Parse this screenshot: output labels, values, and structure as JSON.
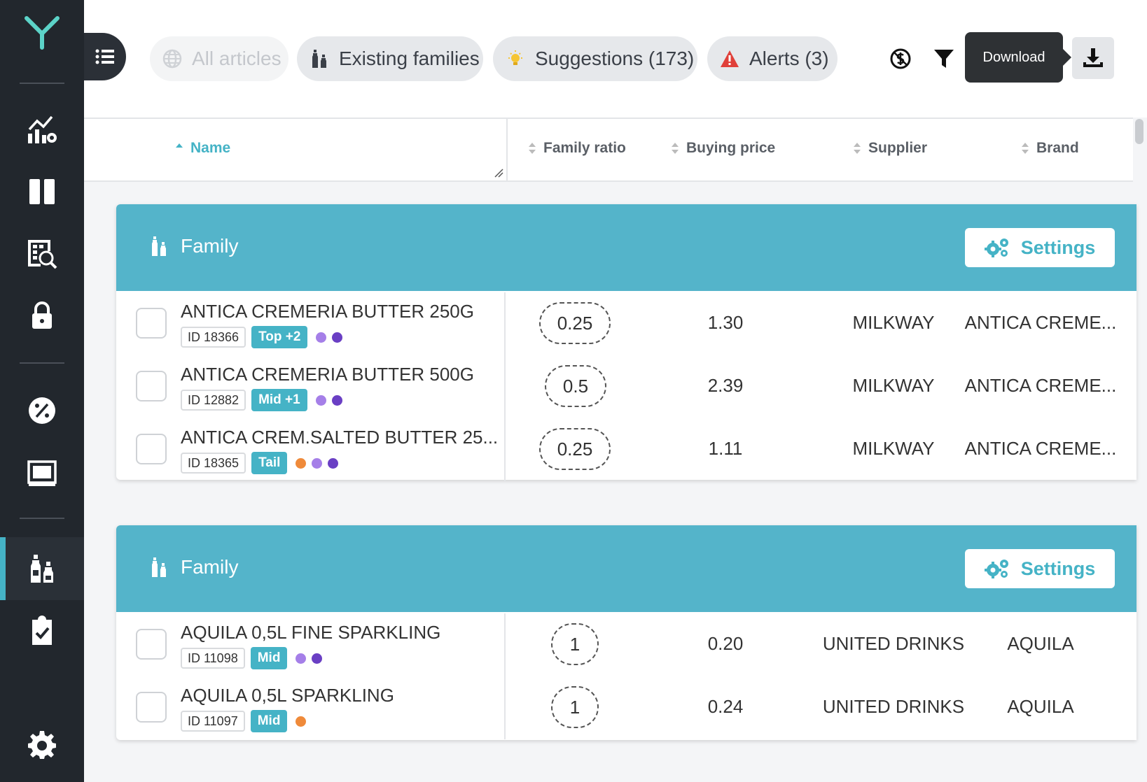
{
  "sidebar": {
    "logo": "Y",
    "items": [
      {
        "icon": "analytics-settings-icon"
      },
      {
        "icon": "columns-icon"
      },
      {
        "icon": "price-table-search-icon"
      },
      {
        "icon": "lock-icon"
      },
      {
        "icon": "discount-badge-icon"
      },
      {
        "icon": "monitor-frame-icon"
      },
      {
        "icon": "bottles-family-icon",
        "active": true
      },
      {
        "icon": "clipboard-check-icon"
      },
      {
        "icon": "gear-icon"
      }
    ]
  },
  "toolbar": {
    "filters": [
      {
        "label": "All articles",
        "icon": "globe-icon",
        "disabled": true
      },
      {
        "label": "Existing families",
        "icon": "bottles-icon"
      },
      {
        "label": "Suggestions (173)",
        "icon": "lightbulb-icon"
      },
      {
        "label": "Alerts (3)",
        "icon": "warning-icon"
      }
    ],
    "tooltip": "Download"
  },
  "table": {
    "columns": [
      "Name",
      "Family ratio",
      "Buying price",
      "Supplier",
      "Brand"
    ]
  },
  "groups": [
    {
      "title": "Family",
      "settings_label": "Settings",
      "rows": [
        {
          "name": "ANTICA CREMERIA BUTTER 250G",
          "id": "ID 18366",
          "badge": "Top +2",
          "dots": [
            "#a57fe8",
            "#6a3fc4"
          ],
          "ratio": "0.25",
          "price": "1.30",
          "supplier": "MILKWAY",
          "brand": "ANTICA CREME..."
        },
        {
          "name": "ANTICA CREMERIA BUTTER 500G",
          "id": "ID 12882",
          "badge": "Mid +1",
          "dots": [
            "#a57fe8",
            "#6a3fc4"
          ],
          "ratio": "0.5",
          "price": "2.39",
          "supplier": "MILKWAY",
          "brand": "ANTICA CREME..."
        },
        {
          "name": "ANTICA CREM.SALTED BUTTER 25...",
          "id": "ID 18365",
          "badge": "Tail",
          "dots": [
            "#ef8a3a",
            "#a57fe8",
            "#6a3fc4"
          ],
          "ratio": "0.25",
          "price": "1.11",
          "supplier": "MILKWAY",
          "brand": "ANTICA CREME..."
        }
      ]
    },
    {
      "title": "Family",
      "settings_label": "Settings",
      "rows": [
        {
          "name": "AQUILA 0,5L FINE SPARKLING",
          "id": "ID 11098",
          "badge": "Mid",
          "dots": [
            "#a57fe8",
            "#6a3fc4"
          ],
          "ratio": "1",
          "price": "0.20",
          "supplier": "UNITED DRINKS",
          "brand": "AQUILA"
        },
        {
          "name": "AQUILA 0,5L SPARKLING",
          "id": "ID 11097",
          "badge": "Mid",
          "dots": [
            "#ef8a3a"
          ],
          "ratio": "1",
          "price": "0.24",
          "supplier": "UNITED DRINKS",
          "brand": "AQUILA"
        }
      ]
    }
  ],
  "colors": {
    "accent": "#45b3c6",
    "group_header": "#54b4ca",
    "sidebar": "#22272d"
  }
}
